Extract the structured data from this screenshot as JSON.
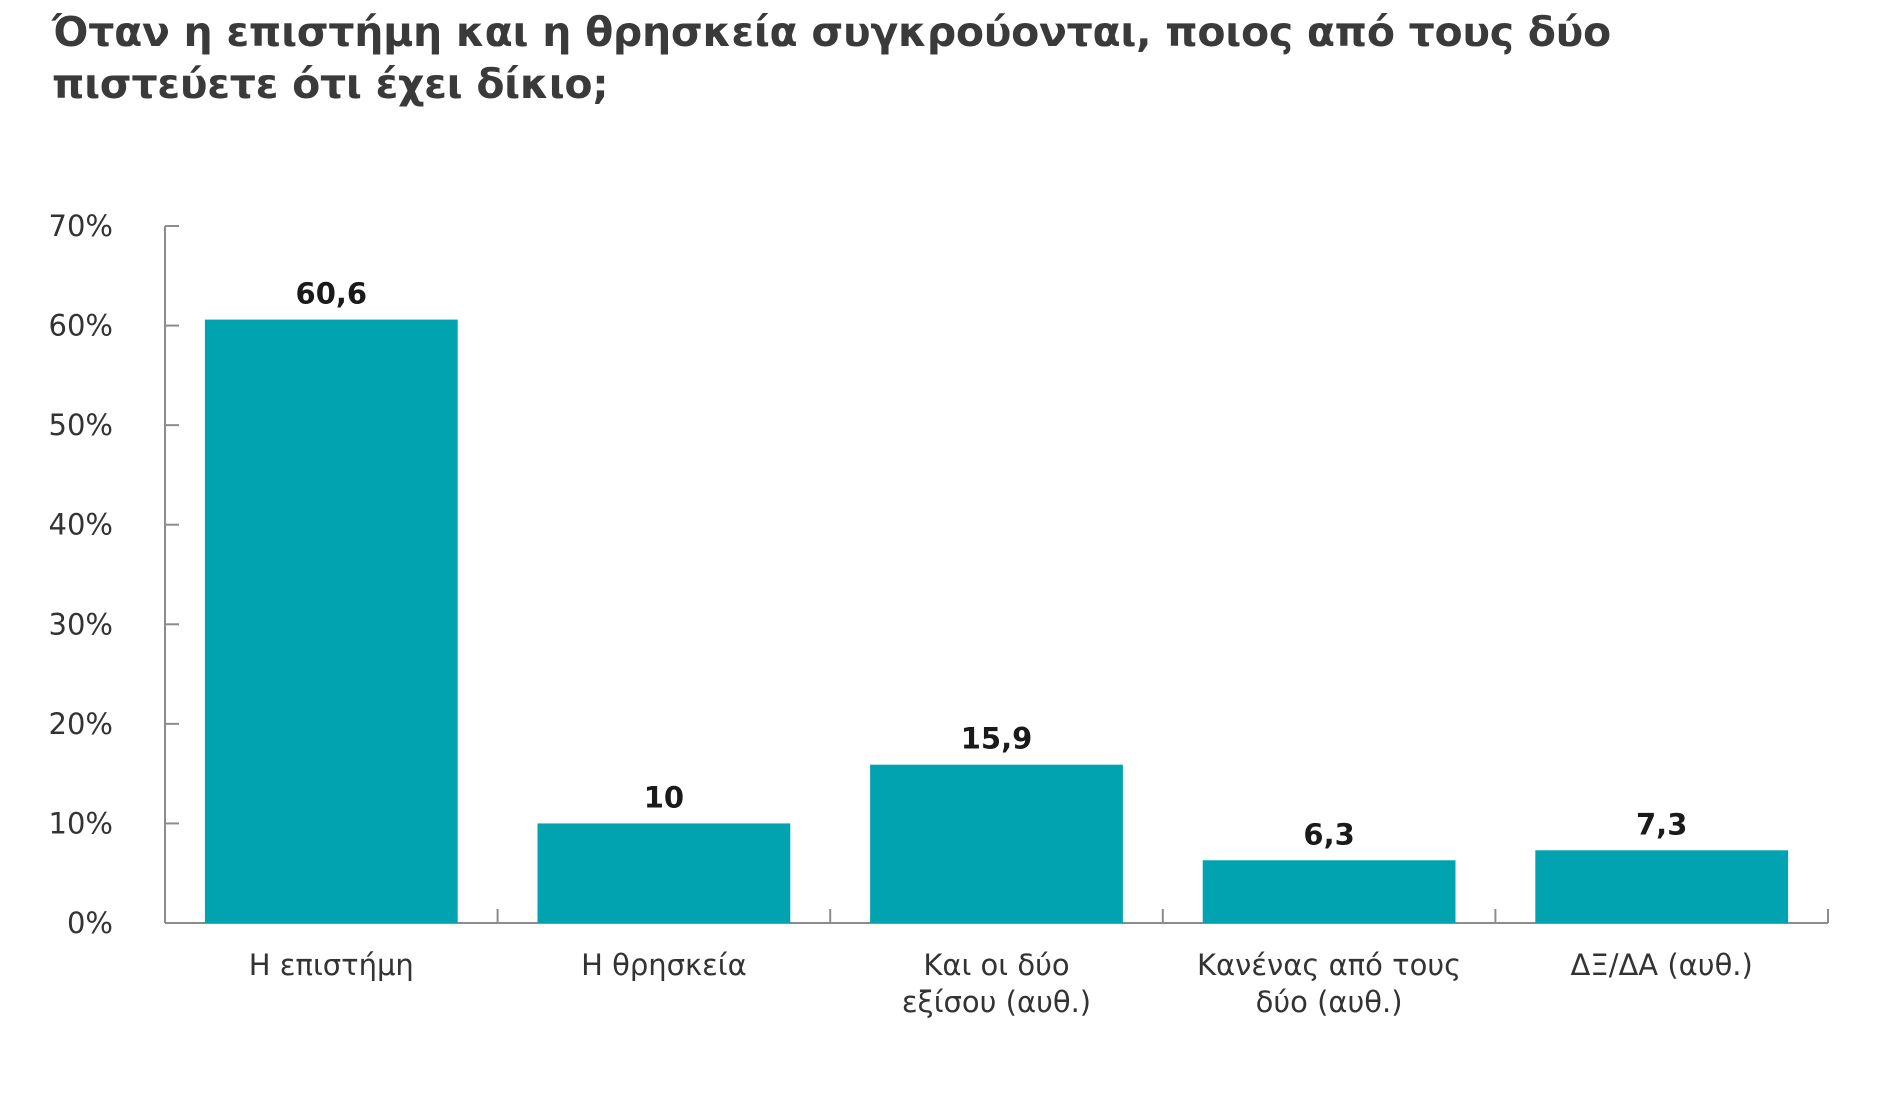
{
  "chart_data": {
    "type": "bar",
    "title": "Όταν η επιστήμη και η θρησκεία συγκρούονται, ποιος από τους δύο πιστεύετε ότι έχει δίκιο;",
    "categories": [
      [
        "Η επιστήμη"
      ],
      [
        "Η θρησκεία"
      ],
      [
        "Και οι δύο",
        "εξίσου (αυθ.)"
      ],
      [
        "Κανένας από τους",
        "δύο (αυθ.)"
      ],
      [
        "ΔΞ/ΔΑ (αυθ.)"
      ]
    ],
    "values": [
      60.6,
      10,
      15.9,
      6.3,
      7.3
    ],
    "value_labels": [
      "60,6",
      "10",
      "15,9",
      "6,3",
      "7,3"
    ],
    "y_ticks": [
      "0%",
      "10%",
      "20%",
      "30%",
      "40%",
      "50%",
      "60%",
      "70%"
    ],
    "ylim": [
      0,
      70
    ],
    "xlabel": "",
    "ylabel": "",
    "grid": false,
    "legend": "none",
    "bar_color": "#00A3AF",
    "axis_color": "#8c8c8c"
  }
}
